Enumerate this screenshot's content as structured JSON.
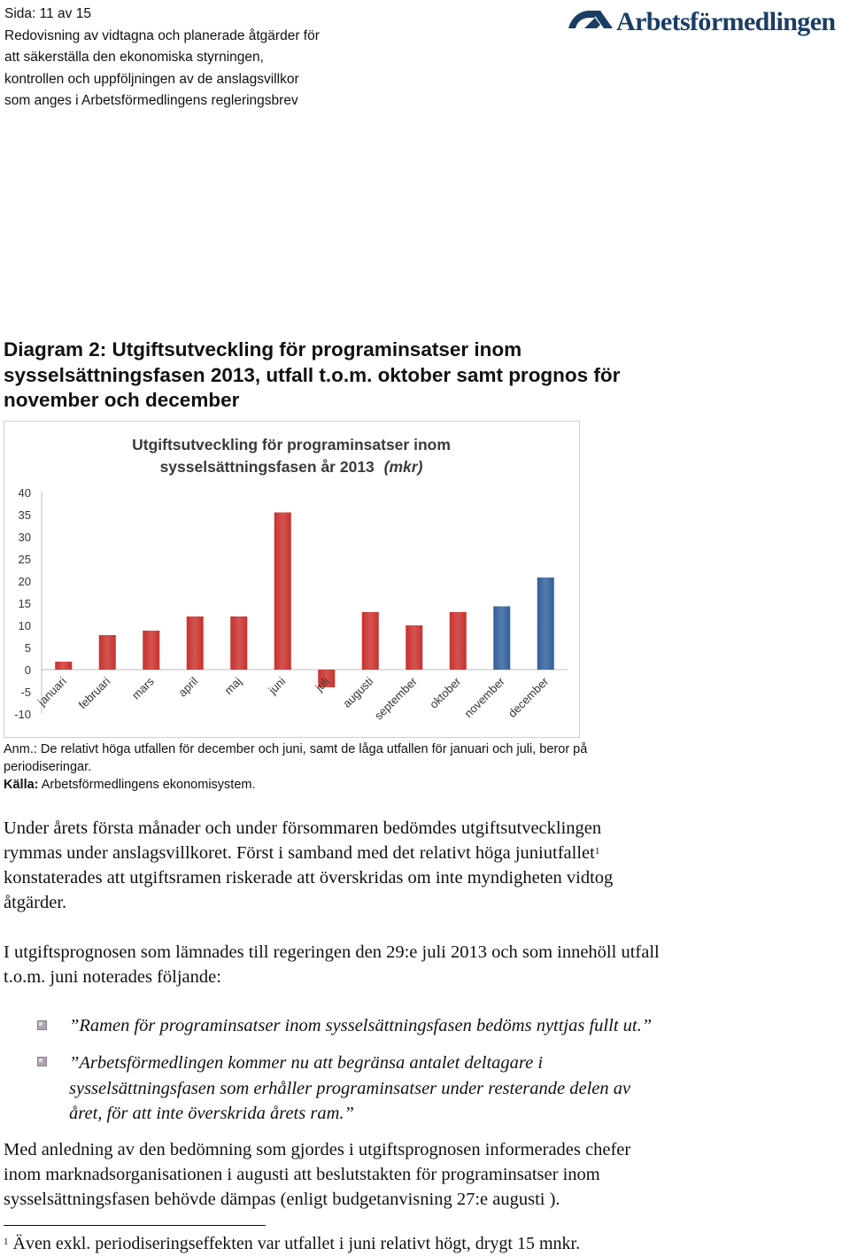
{
  "header": {
    "page": "Sida: 11 av 15",
    "lines": [
      "Redovisning av vidtagna och planerade åtgärder för",
      "att säkerställa den ekonomiska styrningen,",
      "kontrollen och uppföljningen av de anslagsvillkor",
      "som anges i Arbetsförmedlingens regleringsbrev"
    ],
    "logo_text": "Arbetsförmedlingen",
    "logo_color": "#1b3d64"
  },
  "diagram_title": [
    "Diagram 2: Utgiftsutveckling för programinsatser inom",
    "sysselsättningsfasen 2013, utfall t.o.m. oktober samt prognos för",
    "november och december"
  ],
  "chart_data": {
    "type": "bar",
    "title_line1": "Utgiftsutveckling för programinsatser inom",
    "title_line2": "sysselsättningsfasen år 2013",
    "title_unit": "(mkr)",
    "categories": [
      "januari",
      "februari",
      "mars",
      "april",
      "maj",
      "juni",
      "juli",
      "augusti",
      "september",
      "oktober",
      "november",
      "december"
    ],
    "values": [
      1.8,
      7.8,
      8.8,
      12,
      12,
      35.5,
      -4,
      13,
      10,
      13,
      14.3,
      20.8
    ],
    "kinds": [
      "utfall",
      "utfall",
      "utfall",
      "utfall",
      "utfall",
      "utfall",
      "utfall",
      "utfall",
      "utfall",
      "utfall",
      "prognos",
      "prognos"
    ],
    "colors": {
      "utfall": "#c8302c",
      "prognos": "#2f5f99"
    },
    "ylim": [
      -10,
      40
    ],
    "yticks": [
      40,
      35,
      30,
      25,
      20,
      15,
      10,
      5,
      0,
      -5,
      -10
    ],
    "grid": false
  },
  "note": {
    "anm_lines": [
      "Anm.: De relativt höga utfallen för december och juni, samt de låga utfallen för januari och juli, beror på",
      "periodiseringar."
    ],
    "source_label": "Källa:",
    "source_text": " Arbetsförmedlingens ekonomisystem."
  },
  "paragraph1": {
    "line1": "Under årets första månader och under försommaren bedömdes utgiftsutvecklingen",
    "line2": "rymmas under anslagsvillkoret. Först i samband med det relativt höga juniutfallet",
    "line2_sup": "1",
    "line3": "konstaterades att utgiftsramen riskerade att överskridas om inte myndigheten vidtog",
    "line4": "åtgärder."
  },
  "paragraph2": [
    "I utgiftsprognosen som lämnades till regeringen den 29:e juli 2013 och som innehöll utfall",
    "t.o.m. juni noterades följande:"
  ],
  "quotes": {
    "q1": [
      "”Ramen för programinsatser inom sysselsättningsfasen bedöms nyttjas fullt ut.”"
    ],
    "q2": [
      "”Arbetsförmedlingen kommer nu att begränsa antalet deltagare i",
      "sysselsättningsfasen som erhåller programinsatser under resterande delen av",
      "året, för att inte överskrida årets ram.”"
    ]
  },
  "paragraph3": [
    "Med anledning av den bedömning som gjordes i utgiftsprognosen informerades chefer",
    "inom marknadsorganisationen i augusti att beslutstakten för programinsatser inom",
    "sysselsättningsfasen behövde dämpas (enligt budgetanvisning 27:e augusti )."
  ],
  "footnote": {
    "marker": "1",
    "text": " Även exkl. periodiseringseffekten var utfallet i juni relativt högt, drygt 15 mnkr."
  }
}
